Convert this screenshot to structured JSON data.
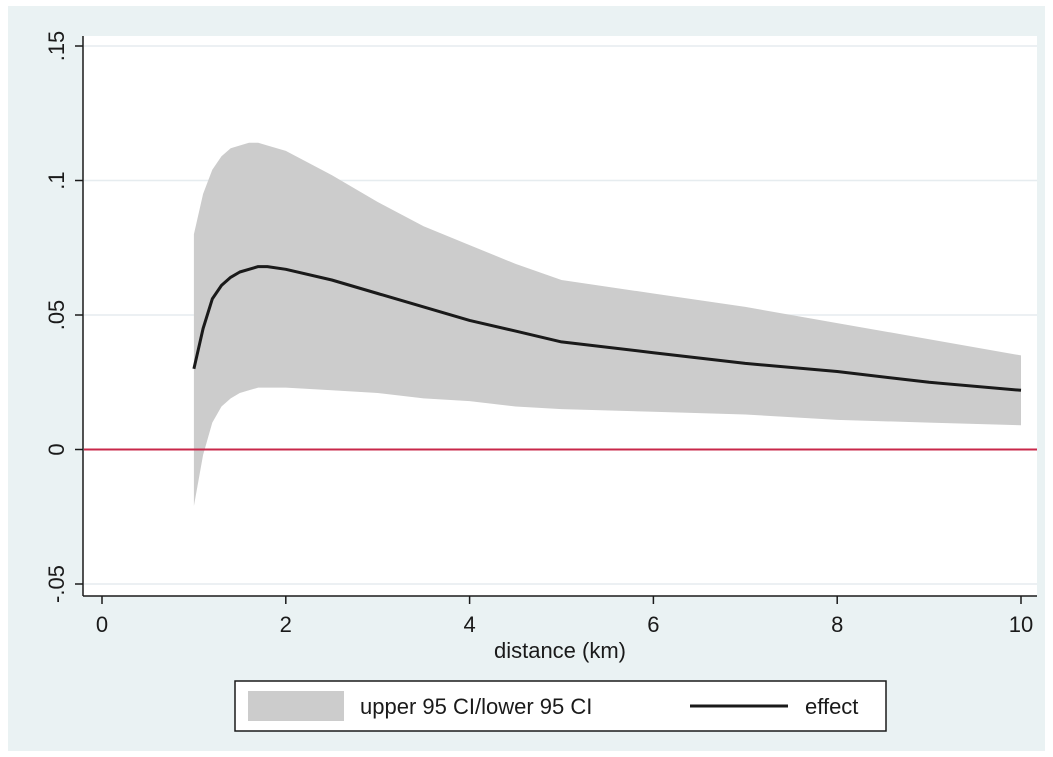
{
  "chart_data": {
    "type": "area",
    "title": "",
    "xlabel": "distance (km)",
    "ylabel": "",
    "xlim": [
      0,
      10
    ],
    "ylim": [
      -0.05,
      0.15
    ],
    "x_ticks": [
      {
        "value": 0,
        "label": "0"
      },
      {
        "value": 2,
        "label": "2"
      },
      {
        "value": 4,
        "label": "4"
      },
      {
        "value": 6,
        "label": "6"
      },
      {
        "value": 8,
        "label": "8"
      },
      {
        "value": 10,
        "label": "10"
      }
    ],
    "y_ticks": [
      {
        "value": -0.05,
        "label": "-.05"
      },
      {
        "value": 0,
        "label": "0"
      },
      {
        "value": 0.05,
        "label": ".05"
      },
      {
        "value": 0.1,
        "label": ".1"
      },
      {
        "value": 0.15,
        "label": ".15"
      }
    ],
    "grid": "horizontal",
    "reference_line": {
      "y": 0,
      "color": "#c8284a"
    },
    "legend_position": "bottom",
    "series": [
      {
        "name": "upper 95 CI/lower 95 CI",
        "kind": "band",
        "color": "#cccccc",
        "x": [
          1.0,
          1.1,
          1.2,
          1.3,
          1.4,
          1.5,
          1.6,
          1.7,
          1.8,
          2.0,
          2.5,
          3.0,
          3.5,
          4.0,
          4.5,
          5.0,
          6.0,
          7.0,
          8.0,
          9.0,
          10.0
        ],
        "upper": [
          0.08,
          0.095,
          0.104,
          0.109,
          0.112,
          0.113,
          0.114,
          0.114,
          0.113,
          0.111,
          0.102,
          0.092,
          0.083,
          0.076,
          0.069,
          0.063,
          0.058,
          0.053,
          0.047,
          0.041,
          0.035
        ],
        "lower": [
          -0.021,
          -0.002,
          0.01,
          0.016,
          0.019,
          0.021,
          0.022,
          0.023,
          0.023,
          0.023,
          0.022,
          0.021,
          0.019,
          0.018,
          0.016,
          0.015,
          0.014,
          0.013,
          0.011,
          0.01,
          0.009
        ]
      },
      {
        "name": "effect",
        "kind": "line",
        "color": "#1a1a1a",
        "x": [
          1.0,
          1.1,
          1.2,
          1.3,
          1.4,
          1.5,
          1.6,
          1.7,
          1.8,
          2.0,
          2.5,
          3.0,
          3.5,
          4.0,
          4.5,
          5.0,
          6.0,
          7.0,
          8.0,
          9.0,
          10.0
        ],
        "values": [
          0.03,
          0.045,
          0.056,
          0.061,
          0.064,
          0.066,
          0.067,
          0.068,
          0.068,
          0.067,
          0.063,
          0.058,
          0.053,
          0.048,
          0.044,
          0.04,
          0.036,
          0.032,
          0.029,
          0.025,
          0.022
        ]
      }
    ]
  }
}
